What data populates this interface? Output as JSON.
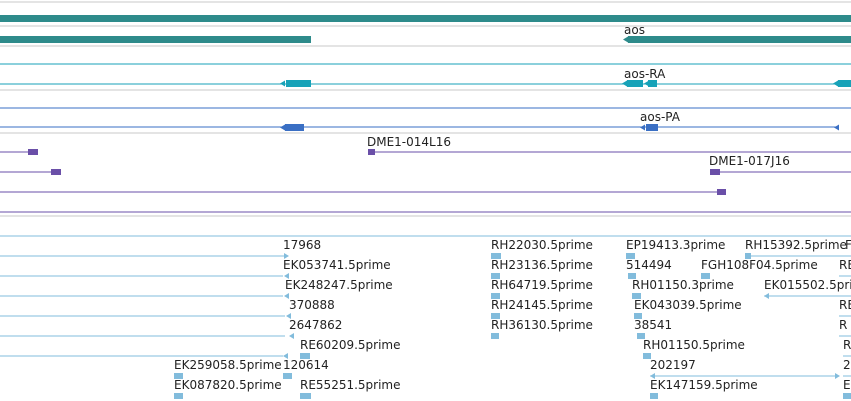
{
  "colors": {
    "gene": "#2e8b8b",
    "transcript": "#17a2b8",
    "protein": "#3a6fc4",
    "clone": "#6a4fa8",
    "est": "#82bcdc",
    "separator": "#c8c8c8"
  },
  "tracks": {
    "gene": {
      "labels": [
        "aos"
      ]
    },
    "transcript": {
      "labels": [
        "aos-RA"
      ]
    },
    "protein": {
      "labels": [
        "aos-PA"
      ]
    },
    "clones": {
      "labels": [
        "DME1-014L16",
        "DME1-017J16"
      ]
    },
    "ests": {
      "labels": [
        "17968",
        "RH22030.5prime",
        "EP19413.3prime",
        "RH15392.5prime",
        "F",
        "EK053741.5prime",
        "RH23136.5prime",
        "514494",
        "FGH108F04.5prime",
        "RE",
        "EK248247.5prime",
        "RH64719.5prime",
        "RH01150.3prime",
        "EK015502.5prime",
        "370888",
        "RH24145.5prime",
        "EK043039.5prime",
        "RE",
        "2647862",
        "RH36130.5prime",
        "38541",
        "R",
        "RE60209.5prime",
        "RH01150.5prime",
        "R",
        "EK259058.5prime",
        "120614",
        "202197",
        "2",
        "EK087820.5prime",
        "RE55251.5prime",
        "EK147159.5prime",
        "E"
      ]
    }
  }
}
